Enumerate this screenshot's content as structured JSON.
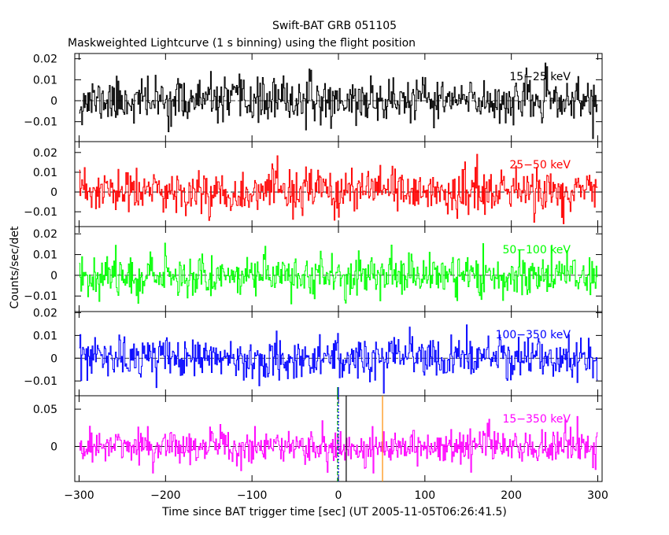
{
  "chart_data": {
    "type": "line",
    "title": "Swift-BAT GRB 051105",
    "subtitle": "Maskweighted Lightcurve (1 s binning) using the flight position",
    "xlabel": "Time since BAT trigger time [sec] (UT 2005-11-05T06:26:41.5)",
    "ylabel": "Counts/sec/det",
    "xlim": [
      -305,
      305
    ],
    "x_ticks": [
      -300,
      -200,
      -100,
      0,
      100,
      200,
      300
    ],
    "x_tick_labels": [
      "−300",
      "−200",
      "−100",
      "0",
      "100",
      "200",
      "300"
    ],
    "x_start": -300,
    "x_end": 300,
    "bin_size": 1,
    "series": [
      {
        "name": "15−25 keV",
        "color": "#000000",
        "ylim": [
          -0.0195,
          0.0225
        ],
        "y_ticks": [
          -0.01,
          0,
          0.01,
          0.02
        ],
        "y_tick_labels": [
          "−0.01",
          "0",
          "0.01",
          "0.02"
        ],
        "noise_sigma": 0.0052,
        "seed": 11
      },
      {
        "name": "25−50 keV",
        "color": "#ff0000",
        "ylim": [
          -0.0175,
          0.0255
        ],
        "y_ticks": [
          -0.01,
          0,
          0.01,
          0.02
        ],
        "y_tick_labels": [
          "−0.01",
          "0",
          "0.01",
          "0.02"
        ],
        "noise_sigma": 0.0056,
        "seed": 23
      },
      {
        "name": "50−100 keV",
        "color": "#00ff00",
        "ylim": [
          -0.0175,
          0.0235
        ],
        "y_ticks": [
          -0.01,
          0,
          0.01,
          0.02
        ],
        "y_tick_labels": [
          "−0.01",
          "0",
          "0.01",
          "0.02"
        ],
        "noise_sigma": 0.005,
        "seed": 37
      },
      {
        "name": "100−350 keV",
        "color": "#0000ff",
        "ylim": [
          -0.0165,
          0.0205
        ],
        "y_ticks": [
          -0.01,
          0,
          0.01,
          0.02
        ],
        "y_tick_labels": [
          "−0.01",
          "0",
          "0.01",
          "0.02"
        ],
        "noise_sigma": 0.0045,
        "seed": 53
      },
      {
        "name": "15−350 keV",
        "color": "#ff00ff",
        "ylim": [
          -0.047,
          0.068
        ],
        "y_ticks": [
          0,
          0.05
        ],
        "y_tick_labels": [
          "0",
          "0.05"
        ],
        "noise_sigma": 0.0118,
        "seed": 71
      }
    ],
    "markers": [
      {
        "x": -1,
        "color": "#00aa00",
        "style": "dashed"
      },
      {
        "x": 0,
        "color": "#0000ff",
        "style": "dotted"
      },
      {
        "x": 9,
        "color": "#000000",
        "style": "solid"
      },
      {
        "x": 51,
        "color": "#ff8c00",
        "style": "solid"
      }
    ],
    "grid": false,
    "legend": "per-panel label, top-right"
  }
}
